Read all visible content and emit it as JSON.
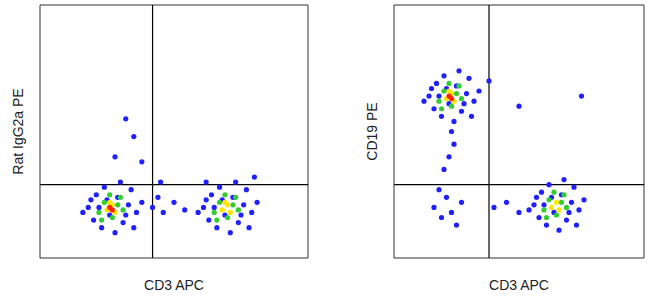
{
  "chart_data": [
    {
      "type": "scatter",
      "x_label": "CD3 APC",
      "y_label": "Rat IgG2a PE",
      "xlim": [
        0,
        100
      ],
      "ylim": [
        0,
        100
      ],
      "tick_labels": false,
      "gates": {
        "x": 42,
        "y": 29
      },
      "series": [
        {
          "color": "#2020ff",
          "points": [
            [
              18,
              20
            ],
            [
              20,
              15
            ],
            [
              21,
              25
            ],
            [
              23,
              12
            ],
            [
              24,
              28
            ],
            [
              26,
              17
            ],
            [
              29,
              24
            ],
            [
              31,
              14
            ],
            [
              33,
              21
            ],
            [
              34,
              27
            ],
            [
              36,
              18
            ],
            [
              22,
              20
            ],
            [
              30,
              30
            ],
            [
              19,
              23
            ],
            [
              35,
              12
            ],
            [
              28,
              10
            ],
            [
              16,
              18
            ],
            [
              38,
              22
            ],
            [
              25,
              23
            ],
            [
              32,
              17
            ],
            [
              61,
              20
            ],
            [
              63,
              15
            ],
            [
              64,
              25
            ],
            [
              66,
              12
            ],
            [
              67,
              28
            ],
            [
              69,
              17
            ],
            [
              72,
              24
            ],
            [
              74,
              14
            ],
            [
              76,
              21
            ],
            [
              77,
              27
            ],
            [
              79,
              18
            ],
            [
              65,
              20
            ],
            [
              73,
              30
            ],
            [
              62,
              23
            ],
            [
              78,
              12
            ],
            [
              71,
              10
            ],
            [
              59,
              18
            ],
            [
              81,
              22
            ],
            [
              68,
              23
            ],
            [
              75,
              17
            ],
            [
              42,
              20
            ],
            [
              46,
              18
            ],
            [
              50,
              22
            ],
            [
              54,
              19
            ],
            [
              44,
              24
            ],
            [
              32,
              55
            ],
            [
              35,
              48
            ],
            [
              28,
              40
            ],
            [
              38,
              38
            ],
            [
              45,
              30
            ],
            [
              80,
              32
            ],
            [
              62,
              30
            ]
          ]
        },
        {
          "color": "#33cc33",
          "points": [
            [
              22,
              18
            ],
            [
              24,
              22
            ],
            [
              27,
              16
            ],
            [
              29,
              21
            ],
            [
              31,
              19
            ],
            [
              26,
              25
            ],
            [
              23,
              15
            ],
            [
              30,
              24
            ],
            [
              65,
              18
            ],
            [
              67,
              22
            ],
            [
              70,
              16
            ],
            [
              72,
              21
            ],
            [
              74,
              19
            ],
            [
              69,
              25
            ],
            [
              66,
              15
            ],
            [
              73,
              24
            ]
          ]
        },
        {
          "color": "#ffe600",
          "points": [
            [
              25,
              19
            ],
            [
              27,
              21
            ],
            [
              28,
              18
            ],
            [
              26,
              22
            ],
            [
              68,
              19
            ],
            [
              70,
              21
            ],
            [
              71,
              18
            ],
            [
              69,
              22
            ]
          ]
        },
        {
          "color": "#ff2200",
          "points": [
            [
              26,
              20
            ],
            [
              27,
              19
            ]
          ]
        }
      ]
    },
    {
      "type": "scatter",
      "x_label": "CD3 APC",
      "y_label": "CD19 PE",
      "xlim": [
        0,
        100
      ],
      "ylim": [
        0,
        100
      ],
      "tick_labels": false,
      "gates": {
        "x": 38,
        "y": 29
      },
      "series": [
        {
          "color": "#2020ff",
          "points": [
            [
              14,
              64
            ],
            [
              16,
              59
            ],
            [
              17,
              69
            ],
            [
              19,
              56
            ],
            [
              20,
              72
            ],
            [
              22,
              61
            ],
            [
              25,
              68
            ],
            [
              27,
              58
            ],
            [
              29,
              65
            ],
            [
              30,
              71
            ],
            [
              32,
              62
            ],
            [
              18,
              64
            ],
            [
              26,
              74
            ],
            [
              15,
              67
            ],
            [
              31,
              56
            ],
            [
              24,
              54
            ],
            [
              12,
              62
            ],
            [
              34,
              66
            ],
            [
              21,
              67
            ],
            [
              28,
              61
            ],
            [
              56,
              21
            ],
            [
              58,
              16
            ],
            [
              59,
              26
            ],
            [
              61,
              13
            ],
            [
              62,
              29
            ],
            [
              64,
              18
            ],
            [
              67,
              25
            ],
            [
              69,
              15
            ],
            [
              71,
              22
            ],
            [
              72,
              28
            ],
            [
              74,
              19
            ],
            [
              60,
              21
            ],
            [
              68,
              31
            ],
            [
              57,
              24
            ],
            [
              73,
              13
            ],
            [
              66,
              11
            ],
            [
              54,
              19
            ],
            [
              76,
              23
            ],
            [
              63,
              24
            ],
            [
              70,
              18
            ],
            [
              16,
              20
            ],
            [
              19,
              16
            ],
            [
              21,
              24
            ],
            [
              23,
              18
            ],
            [
              25,
              13
            ],
            [
              18,
              27
            ],
            [
              27,
              22
            ],
            [
              22,
              40
            ],
            [
              24,
              45
            ],
            [
              20,
              35
            ],
            [
              23,
              50
            ],
            [
              40,
              20
            ],
            [
              45,
              22
            ],
            [
              50,
              18
            ],
            [
              75,
              64
            ],
            [
              50,
              60
            ],
            [
              38,
              70
            ]
          ]
        },
        {
          "color": "#33cc33",
          "points": [
            [
              18,
              62
            ],
            [
              20,
              66
            ],
            [
              23,
              60
            ],
            [
              25,
              65
            ],
            [
              27,
              63
            ],
            [
              22,
              69
            ],
            [
              19,
              59
            ],
            [
              26,
              68
            ],
            [
              60,
              19
            ],
            [
              62,
              23
            ],
            [
              65,
              17
            ],
            [
              67,
              22
            ],
            [
              69,
              20
            ],
            [
              64,
              26
            ],
            [
              61,
              16
            ],
            [
              68,
              25
            ]
          ]
        },
        {
          "color": "#ffe600",
          "points": [
            [
              21,
              63
            ],
            [
              23,
              65
            ],
            [
              24,
              62
            ],
            [
              22,
              66
            ],
            [
              63,
              20
            ],
            [
              65,
              22
            ],
            [
              66,
              19
            ]
          ]
        },
        {
          "color": "#ff2200",
          "points": [
            [
              22,
              64
            ],
            [
              23,
              63
            ]
          ]
        }
      ]
    }
  ]
}
